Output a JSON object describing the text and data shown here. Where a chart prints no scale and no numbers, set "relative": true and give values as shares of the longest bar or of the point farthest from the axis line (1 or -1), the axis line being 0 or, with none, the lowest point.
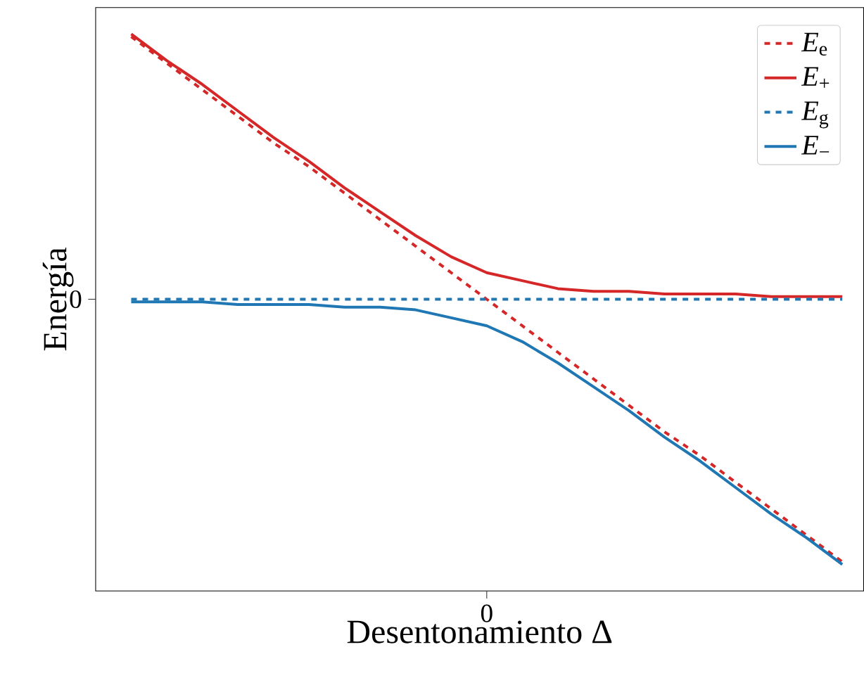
{
  "chart_data": {
    "type": "line",
    "xlabel": "Desentonamiento Δ",
    "ylabel": "Energía",
    "relative": true,
    "categories": [
      null,
      null,
      null,
      null,
      null,
      null,
      null,
      null,
      null,
      null,
      null,
      null,
      null,
      null,
      null,
      null,
      null,
      null,
      null,
      null,
      null
    ],
    "annotations": [
      "0",
      "0"
    ],
    "legend": "top right",
    "series": [
      {
        "name": "*E*$_{e}$",
        "color": "#d62728",
        "line_style": "dashed",
        "values": [
          0.99,
          0.89,
          0.79,
          0.69,
          0.59,
          0.5,
          0.4,
          0.3,
          0.2,
          0.1,
          0,
          -0.1,
          -0.2,
          -0.3,
          -0.4,
          -0.5,
          -0.59,
          -0.69,
          -0.79,
          -0.89,
          -0.99
        ]
      },
      {
        "name": "*E*$_{+}$",
        "color": "#d62728",
        "line_style": "solid",
        "values": [
          1.0,
          0.9,
          0.81,
          0.71,
          0.61,
          0.52,
          0.42,
          0.33,
          0.24,
          0.16,
          0.1,
          0.07,
          0.04,
          0.03,
          0.03,
          0.02,
          0.02,
          0.02,
          0.01,
          0.01,
          0.01
        ]
      },
      {
        "name": "*E*$_{g}$",
        "color": "#1f77b4",
        "line_style": "dashed",
        "values": [
          0,
          0,
          0,
          0,
          0,
          0,
          0,
          0,
          0,
          0,
          0,
          0,
          0,
          0,
          0,
          0,
          0,
          0,
          0,
          0,
          0
        ]
      },
      {
        "name": "*E*$_{−}$",
        "color": "#1f77b4",
        "line_style": "solid",
        "values": [
          -0.01,
          -0.01,
          -0.01,
          -0.02,
          -0.02,
          -0.02,
          -0.03,
          -0.03,
          -0.04,
          -0.07,
          -0.1,
          -0.16,
          -0.24,
          -0.33,
          -0.42,
          -0.52,
          -0.61,
          -0.71,
          -0.81,
          -0.9,
          -1.0
        ]
      }
    ]
  }
}
